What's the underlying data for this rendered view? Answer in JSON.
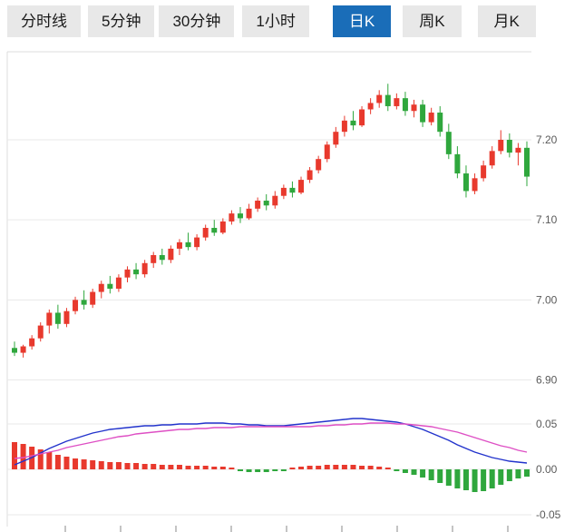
{
  "toolbar": {
    "tabs": [
      {
        "label": "分时线",
        "active": false
      },
      {
        "label": "5分钟",
        "active": false
      },
      {
        "label": "30分钟",
        "active": false
      },
      {
        "label": "1小时",
        "active": false
      },
      {
        "label": "日K",
        "active": true
      },
      {
        "label": "周K",
        "active": false
      },
      {
        "label": "月K",
        "active": false
      }
    ]
  },
  "colors": {
    "up": "#e8392d",
    "down": "#2fa73d",
    "dif_line": "#2233cc",
    "dea_line": "#de4fc4",
    "grid": "#e9e9e9",
    "axis_border": "#dcdcdc",
    "tick_label": "#5a5a5a",
    "tick_mark": "#8a8a8a",
    "tab_active_bg": "#1a6db8",
    "tab_active_text": "#ffffff",
    "tab_bg": "#e8e8e8",
    "tab_text": "#1a1a1a"
  },
  "chart_data": [
    {
      "type": "candlestick",
      "panel": "price",
      "title": "",
      "ylim": [
        6.87,
        7.31
      ],
      "y_ticks": [
        "7.20",
        "7.10",
        "7.00",
        "6.90"
      ],
      "grid": true,
      "candles": [
        [
          6.94,
          6.948,
          6.93,
          6.934
        ],
        [
          6.934,
          6.944,
          6.928,
          6.942
        ],
        [
          6.942,
          6.956,
          6.938,
          6.952
        ],
        [
          6.952,
          6.972,
          6.948,
          6.968
        ],
        [
          6.968,
          6.988,
          6.958,
          6.984
        ],
        [
          6.984,
          6.994,
          6.964,
          6.97
        ],
        [
          6.97,
          6.99,
          6.966,
          6.986
        ],
        [
          6.986,
          7.004,
          6.982,
          7.0
        ],
        [
          7.0,
          7.012,
          6.988,
          6.994
        ],
        [
          6.994,
          7.014,
          6.99,
          7.01
        ],
        [
          7.01,
          7.024,
          7.002,
          7.02
        ],
        [
          7.02,
          7.03,
          7.008,
          7.014
        ],
        [
          7.014,
          7.032,
          7.01,
          7.028
        ],
        [
          7.028,
          7.042,
          7.022,
          7.038
        ],
        [
          7.038,
          7.046,
          7.026,
          7.032
        ],
        [
          7.032,
          7.05,
          7.028,
          7.046
        ],
        [
          7.046,
          7.06,
          7.04,
          7.056
        ],
        [
          7.056,
          7.064,
          7.044,
          7.05
        ],
        [
          7.05,
          7.068,
          7.046,
          7.064
        ],
        [
          7.064,
          7.076,
          7.056,
          7.072
        ],
        [
          7.072,
          7.084,
          7.062,
          7.066
        ],
        [
          7.066,
          7.082,
          7.062,
          7.078
        ],
        [
          7.078,
          7.094,
          7.074,
          7.09
        ],
        [
          7.09,
          7.1,
          7.08,
          7.084
        ],
        [
          7.084,
          7.102,
          7.082,
          7.098
        ],
        [
          7.098,
          7.112,
          7.094,
          7.108
        ],
        [
          7.108,
          7.116,
          7.096,
          7.102
        ],
        [
          7.102,
          7.12,
          7.1,
          7.114
        ],
        [
          7.114,
          7.128,
          7.11,
          7.124
        ],
        [
          7.124,
          7.132,
          7.112,
          7.118
        ],
        [
          7.118,
          7.136,
          7.114,
          7.13
        ],
        [
          7.13,
          7.144,
          7.126,
          7.14
        ],
        [
          7.14,
          7.148,
          7.128,
          7.134
        ],
        [
          7.134,
          7.154,
          7.132,
          7.15
        ],
        [
          7.15,
          7.166,
          7.146,
          7.162
        ],
        [
          7.162,
          7.18,
          7.158,
          7.176
        ],
        [
          7.176,
          7.198,
          7.172,
          7.194
        ],
        [
          7.194,
          7.216,
          7.19,
          7.21
        ],
        [
          7.21,
          7.23,
          7.204,
          7.224
        ],
        [
          7.224,
          7.236,
          7.212,
          7.218
        ],
        [
          7.218,
          7.242,
          7.216,
          7.238
        ],
        [
          7.238,
          7.252,
          7.232,
          7.246
        ],
        [
          7.246,
          7.262,
          7.24,
          7.256
        ],
        [
          7.256,
          7.27,
          7.236,
          7.242
        ],
        [
          7.242,
          7.258,
          7.238,
          7.252
        ],
        [
          7.252,
          7.26,
          7.23,
          7.236
        ],
        [
          7.236,
          7.25,
          7.228,
          7.244
        ],
        [
          7.244,
          7.25,
          7.216,
          7.222
        ],
        [
          7.222,
          7.24,
          7.218,
          7.234
        ],
        [
          7.234,
          7.242,
          7.204,
          7.21
        ],
        [
          7.21,
          7.22,
          7.176,
          7.182
        ],
        [
          7.182,
          7.192,
          7.152,
          7.158
        ],
        [
          7.158,
          7.168,
          7.128,
          7.136
        ],
        [
          7.136,
          7.158,
          7.132,
          7.152
        ],
        [
          7.152,
          7.174,
          7.148,
          7.168
        ],
        [
          7.168,
          7.192,
          7.164,
          7.186
        ],
        [
          7.186,
          7.212,
          7.182,
          7.2
        ],
        [
          7.2,
          7.208,
          7.178,
          7.184
        ],
        [
          7.184,
          7.196,
          7.168,
          7.19
        ],
        [
          7.19,
          7.198,
          7.142,
          7.154
        ]
      ]
    },
    {
      "type": "macd",
      "panel": "indicator",
      "ylim": [
        -0.063,
        0.067
      ],
      "y_ticks": [
        "0.05",
        "0.00",
        "-0.05"
      ],
      "grid": true,
      "series": [
        {
          "name": "DIF",
          "values": [
            0.005,
            0.009,
            0.013,
            0.018,
            0.023,
            0.027,
            0.031,
            0.034,
            0.037,
            0.04,
            0.042,
            0.044,
            0.045,
            0.046,
            0.047,
            0.048,
            0.048,
            0.049,
            0.049,
            0.05,
            0.05,
            0.05,
            0.051,
            0.051,
            0.051,
            0.05,
            0.05,
            0.049,
            0.049,
            0.048,
            0.048,
            0.048,
            0.049,
            0.05,
            0.051,
            0.052,
            0.053,
            0.054,
            0.055,
            0.056,
            0.056,
            0.055,
            0.054,
            0.053,
            0.052,
            0.05,
            0.047,
            0.044,
            0.04,
            0.036,
            0.032,
            0.027,
            0.023,
            0.019,
            0.016,
            0.013,
            0.011,
            0.009,
            0.008,
            0.007
          ]
        },
        {
          "name": "DEA",
          "values": [
            0.012,
            0.013,
            0.015,
            0.017,
            0.019,
            0.021,
            0.024,
            0.026,
            0.028,
            0.03,
            0.032,
            0.034,
            0.036,
            0.037,
            0.039,
            0.04,
            0.041,
            0.042,
            0.043,
            0.044,
            0.044,
            0.045,
            0.045,
            0.046,
            0.046,
            0.046,
            0.047,
            0.047,
            0.047,
            0.047,
            0.047,
            0.047,
            0.047,
            0.047,
            0.047,
            0.048,
            0.048,
            0.049,
            0.049,
            0.05,
            0.05,
            0.051,
            0.051,
            0.051,
            0.05,
            0.05,
            0.049,
            0.048,
            0.047,
            0.045,
            0.043,
            0.041,
            0.038,
            0.035,
            0.032,
            0.029,
            0.026,
            0.024,
            0.021,
            0.019
          ]
        }
      ],
      "histogram": [
        0.03,
        0.028,
        0.025,
        0.022,
        0.019,
        0.016,
        0.014,
        0.012,
        0.011,
        0.01,
        0.009,
        0.008,
        0.008,
        0.007,
        0.007,
        0.006,
        0.006,
        0.005,
        0.005,
        0.005,
        0.004,
        0.004,
        0.004,
        0.003,
        0.003,
        0.002,
        -0.002,
        -0.003,
        -0.003,
        -0.003,
        -0.002,
        -0.002,
        0.002,
        0.003,
        0.004,
        0.004,
        0.005,
        0.005,
        0.005,
        0.005,
        0.004,
        0.004,
        0.003,
        0.002,
        -0.002,
        -0.004,
        -0.006,
        -0.009,
        -0.012,
        -0.015,
        -0.018,
        -0.021,
        -0.023,
        -0.025,
        -0.024,
        -0.021,
        -0.017,
        -0.013,
        -0.01,
        -0.008
      ]
    }
  ]
}
